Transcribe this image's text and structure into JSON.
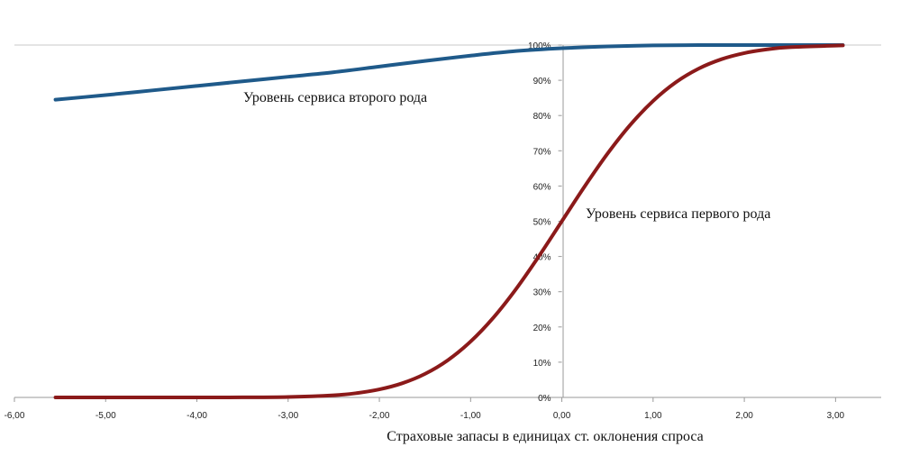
{
  "chart_data": {
    "type": "line",
    "xlabel": "Страховые запасы в единицах ст. оклонения спроса",
    "ylabel": "",
    "xlim": [
      -6,
      3.5
    ],
    "ylim": [
      0,
      1
    ],
    "x_ticks": [
      "-6,00",
      "-5,00",
      "-4,00",
      "-3,00",
      "-2,00",
      "-1,00",
      "0,00",
      "1,00",
      "2,00",
      "3,00"
    ],
    "y_ticks": [
      "0%",
      "10%",
      "20%",
      "30%",
      "40%",
      "50%",
      "60%",
      "70%",
      "80%",
      "90%",
      "100%"
    ],
    "grid": "horizontal line at 100% only",
    "series": [
      {
        "name": "Уровень сервиса второго рода",
        "color": "#1f5a8a",
        "x": [
          -5.55,
          -5.0,
          -4.5,
          -4.0,
          -3.5,
          -3.0,
          -2.5,
          -2.0,
          -1.5,
          -1.0,
          -0.5,
          0.0,
          0.5,
          1.0,
          1.5,
          2.0,
          2.5,
          3.08
        ],
        "y": [
          0.845,
          0.858,
          0.871,
          0.884,
          0.897,
          0.91,
          0.923,
          0.939,
          0.955,
          0.97,
          0.983,
          0.991,
          0.996,
          0.999,
          1.0,
          1.0,
          1.0,
          1.0
        ]
      },
      {
        "name": "Уровень сервиса первого рода",
        "color": "#8b1a1a",
        "x": [
          -5.55,
          -5.0,
          -4.5,
          -4.0,
          -3.5,
          -3.0,
          -2.5,
          -2.25,
          -2.0,
          -1.75,
          -1.5,
          -1.25,
          -1.0,
          -0.75,
          -0.5,
          -0.25,
          0.0,
          0.25,
          0.5,
          0.75,
          1.0,
          1.25,
          1.5,
          1.75,
          2.0,
          2.25,
          2.5,
          3.08
        ],
        "y": [
          0.0,
          0.0,
          0.0,
          0.0,
          0.0002,
          0.0013,
          0.0062,
          0.0122,
          0.0228,
          0.0401,
          0.0668,
          0.1056,
          0.1587,
          0.2266,
          0.3085,
          0.4013,
          0.5,
          0.5987,
          0.6915,
          0.7734,
          0.8413,
          0.8944,
          0.9332,
          0.9599,
          0.9772,
          0.9878,
          0.9938,
          0.999
        ]
      }
    ]
  }
}
